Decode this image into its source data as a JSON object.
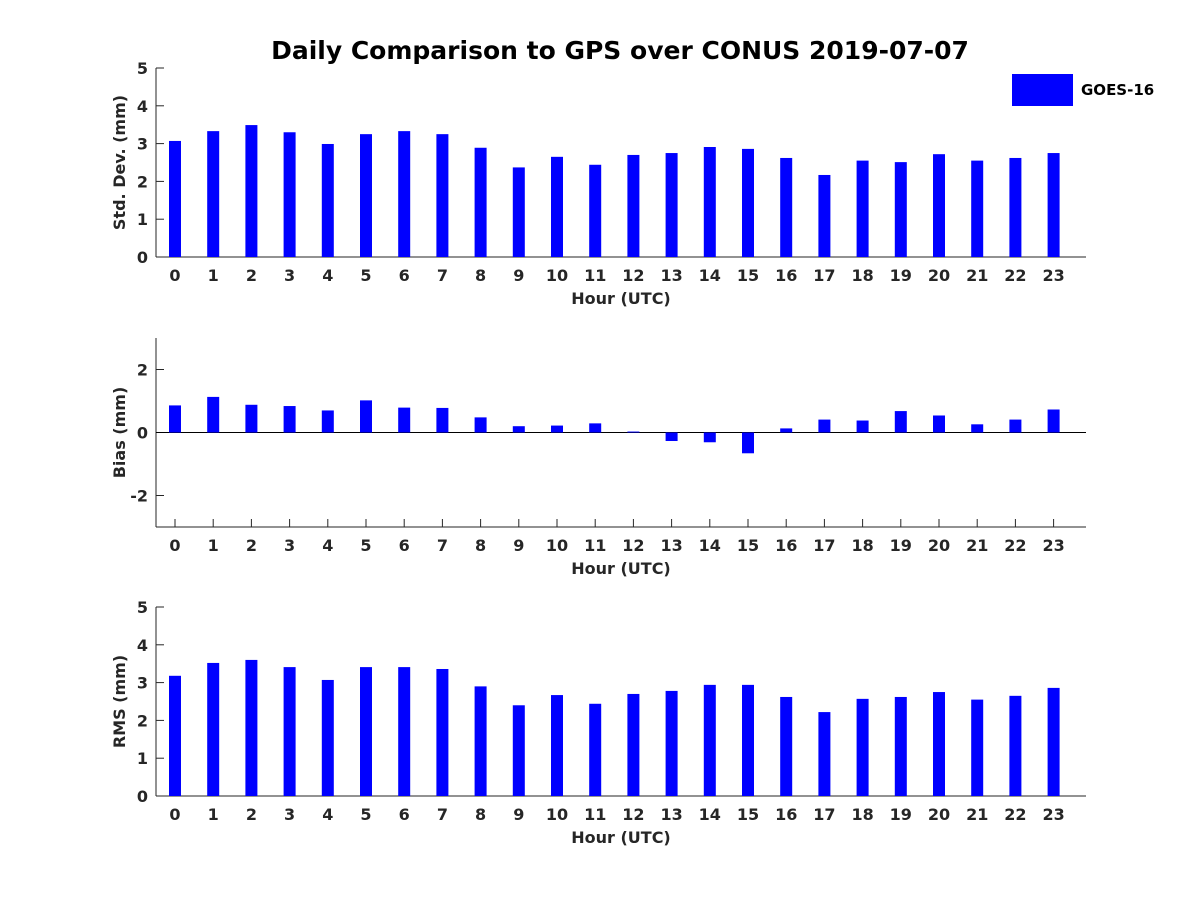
{
  "chart_data": {
    "title": "Daily Comparison to GPS over CONUS 2019-07-07",
    "legend": {
      "label": "GOES-16",
      "color": "#0000ff",
      "placement": "top-right"
    },
    "panels": [
      {
        "type": "bar",
        "ylabel": "Std. Dev. (mm)",
        "xlabel": "Hour (UTC)",
        "ylim": [
          0,
          5
        ],
        "yticks": [
          0,
          1,
          2,
          3,
          4,
          5
        ],
        "ytick_labels": [
          "0",
          "1",
          "2",
          "3",
          "4",
          "5"
        ],
        "categories": [
          "0",
          "1",
          "2",
          "3",
          "4",
          "5",
          "6",
          "7",
          "8",
          "9",
          "10",
          "11",
          "12",
          "13",
          "14",
          "15",
          "16",
          "17",
          "18",
          "19",
          "20",
          "21",
          "22",
          "23"
        ],
        "series": [
          {
            "name": "GOES-16",
            "values": [
              3.07,
              3.33,
              3.49,
              3.3,
              2.99,
              3.25,
              3.33,
              3.25,
              2.89,
              2.37,
              2.65,
              2.44,
              2.7,
              2.75,
              2.91,
              2.86,
              2.62,
              2.17,
              2.55,
              2.51,
              2.72,
              2.55,
              2.62,
              2.75
            ]
          }
        ]
      },
      {
        "type": "bar",
        "ylabel": "Bias (mm)",
        "xlabel": "Hour (UTC)",
        "ylim": [
          -3,
          3
        ],
        "yticks": [
          -2,
          0,
          2
        ],
        "ytick_labels": [
          "-2",
          "0",
          "2"
        ],
        "zero_line": true,
        "categories": [
          "0",
          "1",
          "2",
          "3",
          "4",
          "5",
          "6",
          "7",
          "8",
          "9",
          "10",
          "11",
          "12",
          "13",
          "14",
          "15",
          "16",
          "17",
          "18",
          "19",
          "20",
          "21",
          "22",
          "23"
        ],
        "series": [
          {
            "name": "GOES-16",
            "values": [
              0.86,
              1.13,
              0.88,
              0.84,
              0.7,
              1.02,
              0.79,
              0.78,
              0.48,
              0.2,
              0.22,
              0.29,
              0.03,
              -0.27,
              -0.31,
              -0.66,
              0.13,
              0.41,
              0.38,
              0.68,
              0.54,
              0.26,
              0.41,
              0.73
            ]
          }
        ]
      },
      {
        "type": "bar",
        "ylabel": "RMS (mm)",
        "xlabel": "Hour (UTC)",
        "ylim": [
          0,
          5
        ],
        "yticks": [
          0,
          1,
          2,
          3,
          4,
          5
        ],
        "ytick_labels": [
          "0",
          "1",
          "2",
          "3",
          "4",
          "5"
        ],
        "categories": [
          "0",
          "1",
          "2",
          "3",
          "4",
          "5",
          "6",
          "7",
          "8",
          "9",
          "10",
          "11",
          "12",
          "13",
          "14",
          "15",
          "16",
          "17",
          "18",
          "19",
          "20",
          "21",
          "22",
          "23"
        ],
        "series": [
          {
            "name": "GOES-16",
            "values": [
              3.18,
              3.52,
              3.6,
              3.41,
              3.07,
              3.41,
              3.41,
              3.36,
              2.9,
              2.4,
              2.67,
              2.44,
              2.7,
              2.78,
              2.94,
              2.94,
              2.62,
              2.22,
              2.57,
              2.62,
              2.75,
              2.55,
              2.65,
              2.86
            ]
          }
        ]
      }
    ]
  }
}
